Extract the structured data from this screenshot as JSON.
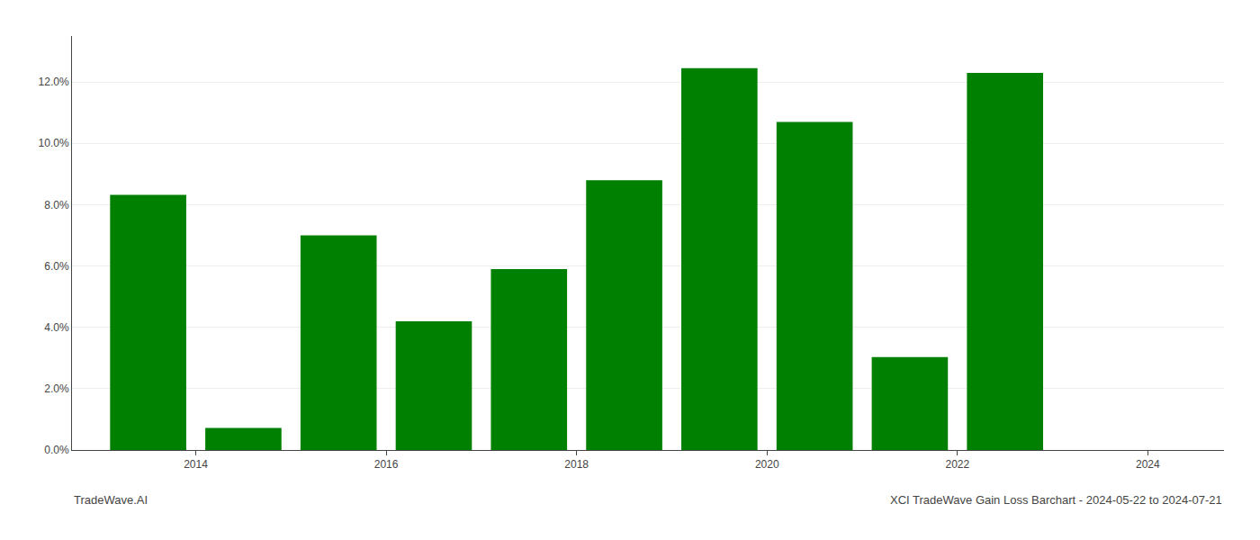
{
  "chart_data": {
    "type": "bar",
    "title": "XCI TradeWave Gain Loss Barchart - 2024-05-22 to 2024-07-21",
    "annotations": [
      "TradeWave.AI"
    ],
    "x": [
      2014,
      2015,
      2016,
      2017,
      2018,
      2019,
      2020,
      2021,
      2022,
      2023
    ],
    "values": [
      0.0832,
      0.0072,
      0.07,
      0.042,
      0.059,
      0.088,
      0.1245,
      0.107,
      0.0303,
      0.123
    ],
    "color": "#008000",
    "xlim": [
      2013.2,
      2025.3
    ],
    "xticks": [
      {
        "value": 2014.5,
        "label": "2014"
      },
      {
        "value": 2016.5,
        "label": "2016"
      },
      {
        "value": 2018.5,
        "label": "2018"
      },
      {
        "value": 2020.5,
        "label": "2020"
      },
      {
        "value": 2022.5,
        "label": "2022"
      },
      {
        "value": 2024.5,
        "label": "2024"
      }
    ],
    "ylim": [
      0,
      0.135
    ],
    "yticks": [
      {
        "value": 0,
        "label": "0.0%"
      },
      {
        "value": 0.02,
        "label": "2.0%"
      },
      {
        "value": 0.04,
        "label": "4.0%"
      },
      {
        "value": 0.06,
        "label": "6.0%"
      },
      {
        "value": 0.08,
        "label": "8.0%"
      },
      {
        "value": 0.1,
        "label": "10.0%"
      },
      {
        "value": 0.12,
        "label": "12.0%"
      }
    ],
    "grid": true
  }
}
